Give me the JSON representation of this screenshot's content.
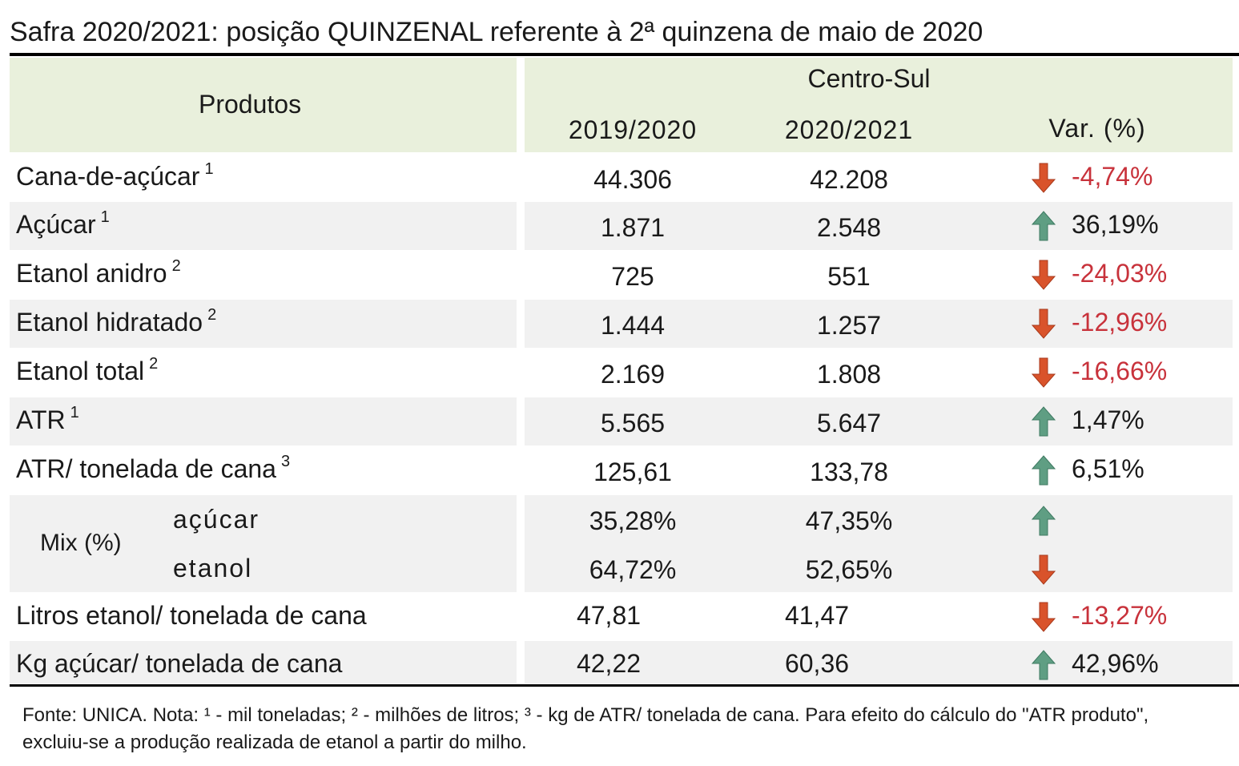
{
  "title": "Safra 2020/2021: posição QUINZENAL referente à 2ª quinzena de maio de 2020",
  "header": {
    "produtos": "Produtos",
    "region": "Centro-Sul",
    "col1": "2019/2020",
    "col2": "2020/2021",
    "col3": "Var. (%)"
  },
  "rows": [
    {
      "name": "Cana-de-açúcar",
      "note": "1",
      "v1": "44.306",
      "v2": "42.208",
      "var": "-4,74%",
      "dir": "down"
    },
    {
      "name": "Açúcar",
      "note": "1",
      "v1": "1.871",
      "v2": "2.548",
      "var": "36,19%",
      "dir": "up"
    },
    {
      "name": "Etanol anidro",
      "note": "2",
      "v1": "725",
      "v2": "551",
      "var": "-24,03%",
      "dir": "down"
    },
    {
      "name": "Etanol hidratado",
      "note": "2",
      "v1": "1.444",
      "v2": "1.257",
      "var": "-12,96%",
      "dir": "down"
    },
    {
      "name": "Etanol total",
      "note": "2",
      "v1": "2.169",
      "v2": "1.808",
      "var": "-16,66%",
      "dir": "down"
    },
    {
      "name": "ATR",
      "note": "1",
      "v1": "5.565",
      "v2": "5.647",
      "var": "1,47%",
      "dir": "up"
    },
    {
      "name": "ATR/ tonelada de cana",
      "note": "3",
      "v1": "125,61",
      "v2": "133,78",
      "var": "6,51%",
      "dir": "up"
    }
  ],
  "mix": {
    "label": "Mix (%)",
    "sub1": {
      "name": "açúcar",
      "v1": "35,28%",
      "v2": "47,35%",
      "dir": "up"
    },
    "sub2": {
      "name": "etanol",
      "v1": "64,72%",
      "v2": "52,65%",
      "dir": "down"
    }
  },
  "rows2": [
    {
      "name": "Litros etanol/ tonelada de cana",
      "v1": "47,81",
      "v2": "41,47",
      "var": "-13,27%",
      "dir": "down"
    },
    {
      "name": "Kg açúcar/ tonelada de cana",
      "v1": "42,22",
      "v2": "60,36",
      "var": "42,96%",
      "dir": "up"
    }
  ],
  "footnote": "Fonte: UNICA. Nota: ¹ - mil toneladas; ² - milhões de litros; ³ - kg de ATR/ tonelada de cana. Para efeito do cálculo do \"ATR produto\", excluiu-se a produção realizada de etanol a partir do milho.",
  "colors": {
    "up": "#5f9e83",
    "down": "#d9532b",
    "negative_text": "#c8323b",
    "header_bg": "#e9f0dc",
    "row_bg": "#f1f1f1"
  }
}
